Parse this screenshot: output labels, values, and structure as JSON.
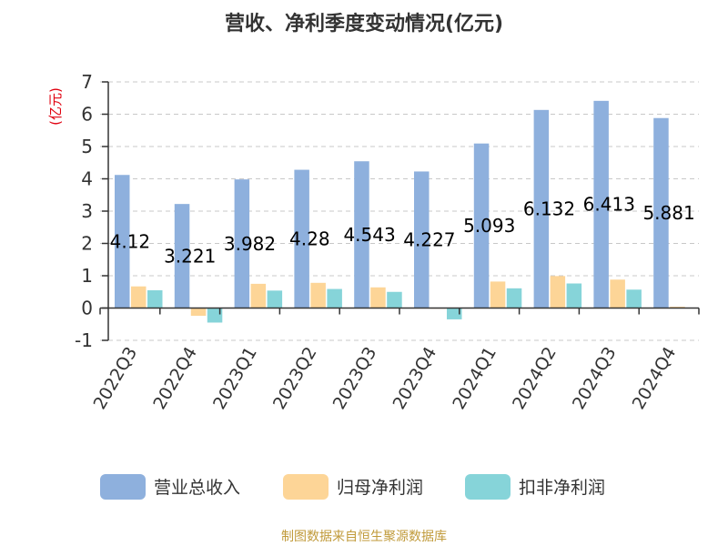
{
  "chart_data": {
    "type": "bar",
    "title": "营收、净利季度变动情况(亿元)",
    "ylabel": "(亿元)",
    "xlabel": "",
    "ylim": [
      -1,
      7
    ],
    "yticks": [
      -1,
      0,
      1,
      2,
      3,
      4,
      5,
      6,
      7
    ],
    "grid": true,
    "legend_position": "bottom",
    "categories": [
      "2022Q3",
      "2022Q4",
      "2023Q1",
      "2023Q2",
      "2023Q3",
      "2023Q4",
      "2024Q1",
      "2024Q2",
      "2024Q3",
      "2024Q4"
    ],
    "series": [
      {
        "name": "营业总收入",
        "color": "#8eb0dd",
        "values": [
          4.12,
          3.221,
          3.982,
          4.28,
          4.543,
          4.227,
          5.093,
          6.132,
          6.413,
          5.881
        ],
        "data_labels": [
          "4.12",
          "3.221",
          "3.982",
          "4.28",
          "4.543",
          "4.227",
          "5.093",
          "6.132",
          "6.413",
          "5.881"
        ]
      },
      {
        "name": "归母净利润",
        "color": "#fdd597",
        "values": [
          0.67,
          -0.24,
          0.75,
          0.78,
          0.64,
          0.01,
          0.82,
          0.99,
          0.88,
          0.04
        ]
      },
      {
        "name": "扣非净利润",
        "color": "#86d4d9",
        "values": [
          0.55,
          -0.45,
          0.54,
          0.59,
          0.5,
          -0.35,
          0.61,
          0.76,
          0.57,
          0.0
        ]
      }
    ]
  },
  "source_text": "制图数据来自恒生聚源数据库"
}
